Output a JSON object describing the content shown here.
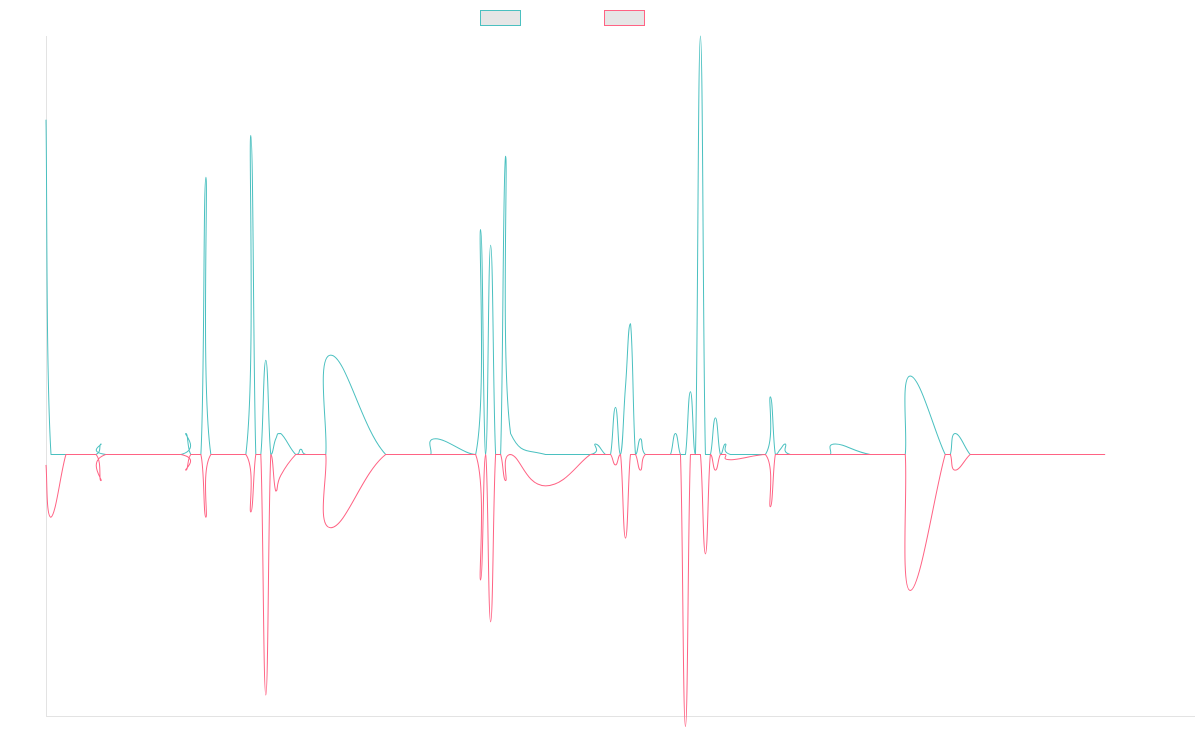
{
  "chart_data": {
    "type": "line",
    "title": "",
    "xlabel": "",
    "ylabel": "",
    "grid": false,
    "legend": "top-center",
    "x_range": [
      0,
      230
    ],
    "ylim": [
      -50,
      80
    ],
    "series": [
      {
        "name": "",
        "color": "#4bc0c0",
        "legend_fill": "#e6e6e6",
        "x": [
          0,
          1,
          4,
          5,
          6,
          10,
          11,
          12,
          27,
          28,
          29,
          31,
          32,
          33,
          40,
          41,
          42,
          43,
          44,
          45,
          46,
          47,
          50,
          51,
          52,
          55,
          56,
          57,
          68,
          76,
          77,
          78,
          86,
          87,
          88,
          89,
          90,
          91,
          92,
          93,
          100,
          109,
          110,
          112,
          113,
          114,
          115,
          116,
          117,
          118,
          119,
          120,
          123,
          124,
          125,
          126,
          127,
          128,
          129,
          130,
          131,
          132,
          133,
          134,
          135,
          136,
          137,
          144,
          145,
          146,
          147,
          148,
          149,
          156,
          157,
          158,
          165,
          171,
          172,
          173,
          180,
          181,
          182,
          185,
          186,
          187,
          194,
          195,
          196,
          201,
          206,
          212
        ],
        "y": [
          64,
          0,
          0,
          0,
          0,
          0,
          2,
          0,
          0,
          4,
          0,
          0,
          53,
          0,
          0,
          61,
          0,
          0,
          18,
          0,
          3,
          4,
          0,
          1,
          0,
          0,
          0,
          19,
          0,
          0,
          0,
          3,
          0,
          43,
          0,
          40,
          0,
          0,
          57,
          4,
          0,
          0,
          2,
          0,
          0,
          9,
          0,
          13,
          25,
          0,
          3,
          0,
          0,
          0,
          0,
          4,
          0,
          0,
          12,
          0,
          80,
          0,
          0,
          7,
          0,
          2,
          0,
          0,
          11,
          0,
          1,
          2,
          0,
          0,
          0,
          2,
          0,
          0,
          0,
          15,
          0,
          0,
          4,
          0,
          0,
          0,
          0,
          0,
          0,
          0,
          0,
          0
        ]
      },
      {
        "name": "",
        "color": "#ff6384",
        "legend_fill": "#e6e6e6",
        "x": [
          0,
          1,
          4,
          5,
          6,
          10,
          11,
          12,
          27,
          28,
          29,
          31,
          32,
          33,
          40,
          41,
          42,
          43,
          44,
          45,
          46,
          47,
          50,
          51,
          52,
          55,
          56,
          57,
          68,
          76,
          77,
          78,
          86,
          87,
          88,
          89,
          90,
          91,
          92,
          93,
          100,
          109,
          110,
          112,
          113,
          114,
          115,
          116,
          117,
          118,
          119,
          120,
          123,
          124,
          125,
          126,
          127,
          128,
          129,
          130,
          131,
          132,
          133,
          134,
          135,
          136,
          137,
          144,
          145,
          146,
          147,
          148,
          149,
          156,
          157,
          158,
          165,
          171,
          172,
          173,
          180,
          181,
          182,
          185,
          186,
          187,
          194,
          195,
          196,
          201,
          206,
          212
        ],
        "y": [
          -2,
          -12,
          0,
          0,
          0,
          0,
          -5,
          0,
          0,
          -3,
          0,
          0,
          -12,
          0,
          0,
          -11,
          0,
          0,
          -46,
          0,
          -7,
          -4,
          0,
          0,
          0,
          0,
          0,
          -14,
          0,
          0,
          0,
          0,
          0,
          -24,
          0,
          -32,
          0,
          0,
          -5,
          0,
          -6,
          0,
          0,
          0,
          0,
          -2,
          0,
          -16,
          0,
          0,
          -3,
          0,
          0,
          0,
          0,
          0,
          0,
          -52,
          0,
          0,
          0,
          -19,
          0,
          -3,
          0,
          0,
          -1,
          0,
          -10,
          0,
          0,
          0,
          0,
          0,
          0,
          0,
          0,
          0,
          0,
          -26,
          0,
          0,
          -3,
          0,
          0,
          0,
          0,
          0,
          0,
          0,
          0,
          0
        ]
      }
    ]
  }
}
